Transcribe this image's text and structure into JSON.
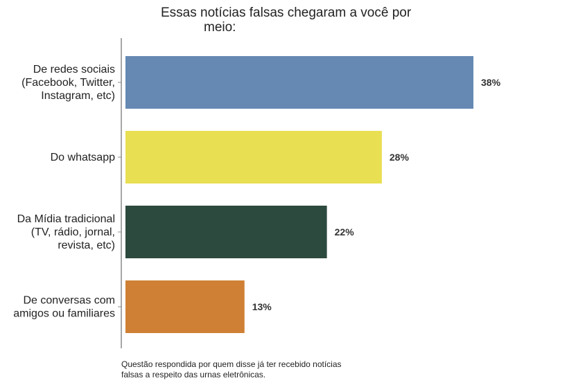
{
  "chart_data": {
    "type": "bar",
    "orientation": "horizontal",
    "title_lines": [
      "Essas notícias falsas chegaram a você por",
      "meio:"
    ],
    "categories": [
      [
        "De redes sociais",
        "(Facebook, Twitter,",
        "Instagram, etc)"
      ],
      [
        "Do whatsapp"
      ],
      [
        "Da Mídia tradicional",
        "(TV, rádio, jornal,",
        "revista, etc)"
      ],
      [
        "De conversas com",
        "amigos ou familiares"
      ]
    ],
    "values": [
      38,
      28,
      22,
      13
    ],
    "value_labels": [
      "38%",
      "28%",
      "22%",
      "13%"
    ],
    "colors": [
      "#6589b3",
      "#e8df52",
      "#2c4a3e",
      "#cf8034"
    ],
    "xlim": [
      0,
      40
    ],
    "grid": false,
    "legend": "none"
  },
  "footnote_lines": [
    "Questão respondida por quem disse já ter recebido notícias",
    "falsas a respeito das urnas eletrônicas."
  ]
}
